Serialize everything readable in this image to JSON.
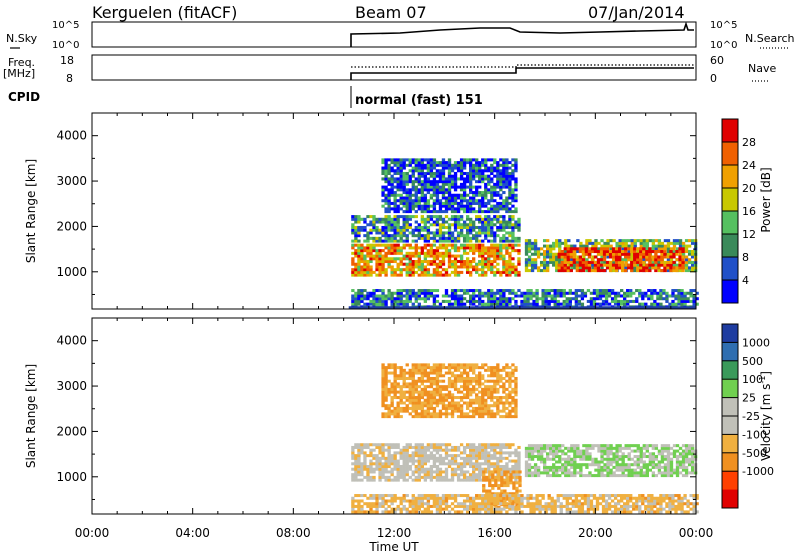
{
  "header": {
    "station": "Kerguelen (fitACF)",
    "beam": "Beam 07",
    "date": "07/Jan/2014"
  },
  "top_panels": {
    "nsky_label": "N.Sky",
    "nsky_ticks": [
      "10^5",
      "10^0"
    ],
    "nsearch_label": "N.Search",
    "nsearch_ticks": [
      "10^5",
      "10^0"
    ],
    "freq_label_line1": "Freq.",
    "freq_label_line2": "[MHz]",
    "freq_ticks": [
      "18",
      "8"
    ],
    "nave_label": "Nave",
    "nave_ticks": [
      "60",
      "0"
    ],
    "cpid_label": "CPID",
    "cpid_text": "normal (fast) 151"
  },
  "colors": {
    "power": [
      "#0000ff",
      "#2050c8",
      "#3a8a5a",
      "#55c060",
      "#c8c800",
      "#f0a000",
      "#f06000",
      "#e00000"
    ],
    "velocity": [
      "#e00000",
      "#ff4000",
      "#f09020",
      "#f0b040",
      "#c0c0b8",
      "#c0c0b8",
      "#70d050",
      "#3a9a5a",
      "#2f6eb0",
      "#1e3ca0"
    ]
  },
  "chart_data": [
    {
      "type": "heatmap",
      "title": "",
      "xlabel": "Time UT",
      "ylabel": "Slant Range [km]",
      "x_ticks": [
        "00:00",
        "04:00",
        "08:00",
        "12:00",
        "16:00",
        "20:00",
        "00:00"
      ],
      "y_ticks": [
        "1000",
        "2000",
        "3000",
        "4000"
      ],
      "xlim": [
        0,
        24
      ],
      "ylim": [
        180,
        4500
      ],
      "colorbar_label": "Power [dB]",
      "colorbar_ticks": [
        "4",
        "8",
        "12",
        "16",
        "20",
        "24",
        "28"
      ],
      "colorbar_range": [
        0,
        32
      ],
      "data_start_hour": 10.2,
      "echo_bands": [
        {
          "t0": 10.3,
          "t1": 17.0,
          "r0": 900,
          "r1": 1600,
          "value": 22
        },
        {
          "t0": 10.3,
          "t1": 17.0,
          "r0": 1650,
          "r1": 2200,
          "value": 10
        },
        {
          "t0": 11.5,
          "t1": 16.8,
          "r0": 2300,
          "r1": 3500,
          "value": 6
        },
        {
          "t0": 17.2,
          "t1": 24.0,
          "r0": 1000,
          "r1": 1700,
          "value": 14
        },
        {
          "t0": 18.5,
          "t1": 23.5,
          "r0": 1000,
          "r1": 1500,
          "value": 28
        },
        {
          "t0": 10.3,
          "t1": 24.0,
          "r0": 200,
          "r1": 600,
          "value": 8
        }
      ]
    },
    {
      "type": "heatmap",
      "title": "",
      "xlabel": "Time UT",
      "ylabel": "Slant Range [km]",
      "x_ticks": [
        "00:00",
        "04:00",
        "08:00",
        "12:00",
        "16:00",
        "20:00",
        "00:00"
      ],
      "y_ticks": [
        "1000",
        "2000",
        "3000",
        "4000"
      ],
      "xlim": [
        0,
        24
      ],
      "ylim": [
        180,
        4500
      ],
      "colorbar_label_main": "Velocity",
      "colorbar_label_units": "[m s",
      "colorbar_label_exp": "-1",
      "colorbar_label_close": "]",
      "colorbar_ticks": [
        "1000",
        "500",
        "100",
        "25",
        "-25",
        "-100",
        "-500",
        "-1000"
      ],
      "data_start_hour": 10.2,
      "echo_bands": [
        {
          "t0": 10.3,
          "t1": 17.0,
          "r0": 900,
          "r1": 1700,
          "value": 0
        },
        {
          "t0": 15.5,
          "t1": 17.0,
          "r0": 300,
          "r1": 1100,
          "value": -100
        },
        {
          "t0": 17.2,
          "t1": 24.0,
          "r0": 1000,
          "r1": 1700,
          "value": 100
        },
        {
          "t0": 11.5,
          "t1": 16.8,
          "r0": 2300,
          "r1": 3500,
          "value": -100
        },
        {
          "t0": 10.3,
          "t1": 24.0,
          "r0": 200,
          "r1": 600,
          "value": -50
        }
      ]
    }
  ]
}
